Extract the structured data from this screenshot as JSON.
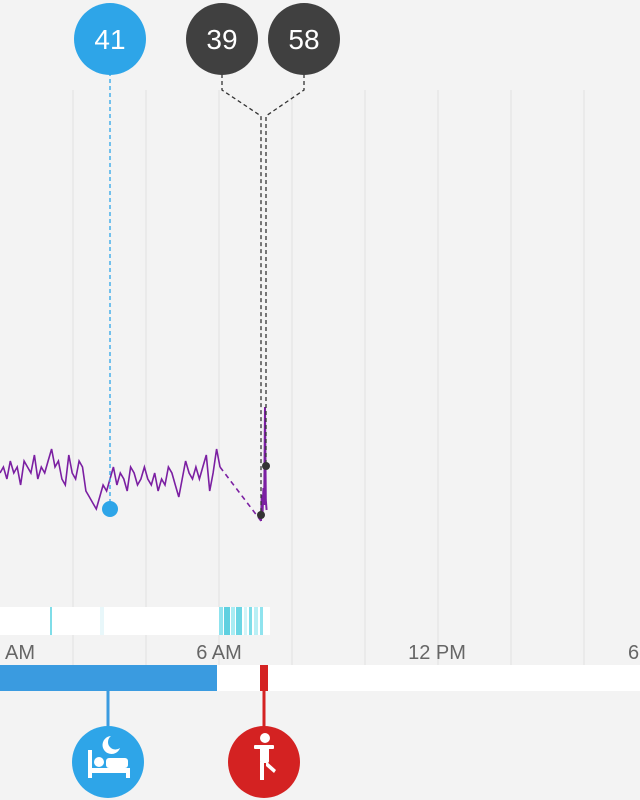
{
  "chart_data": {
    "type": "line",
    "x_ticks": [
      "AM",
      "6 AM",
      "12 PM",
      "6"
    ],
    "series": [
      {
        "values": [
          47,
          48,
          46,
          49,
          47,
          48,
          45,
          49,
          48,
          47,
          50,
          46,
          48,
          47,
          49,
          51,
          48,
          49,
          46,
          45,
          50,
          47,
          46,
          49,
          48,
          44,
          43,
          42,
          41,
          43,
          45,
          44,
          46,
          48,
          45,
          47,
          46,
          44,
          48,
          47,
          45,
          46,
          48,
          46,
          45,
          47,
          44,
          46,
          45,
          48,
          47,
          45,
          43,
          46,
          49,
          47,
          46,
          48,
          46,
          48,
          50,
          44,
          47,
          51,
          48
        ]
      }
    ],
    "markers": [
      {
        "label": "41",
        "value": 41,
        "color": "#2ea5e8"
      },
      {
        "label": "39",
        "value": 39,
        "color": "#404040"
      },
      {
        "label": "58",
        "value": 58,
        "color": "#404040"
      }
    ],
    "sleep_bar_color": "#3a9be0",
    "event_color": "#d42222"
  },
  "icons": {
    "sleep": "bed-moon-icon",
    "activity": "standing-person-icon"
  }
}
